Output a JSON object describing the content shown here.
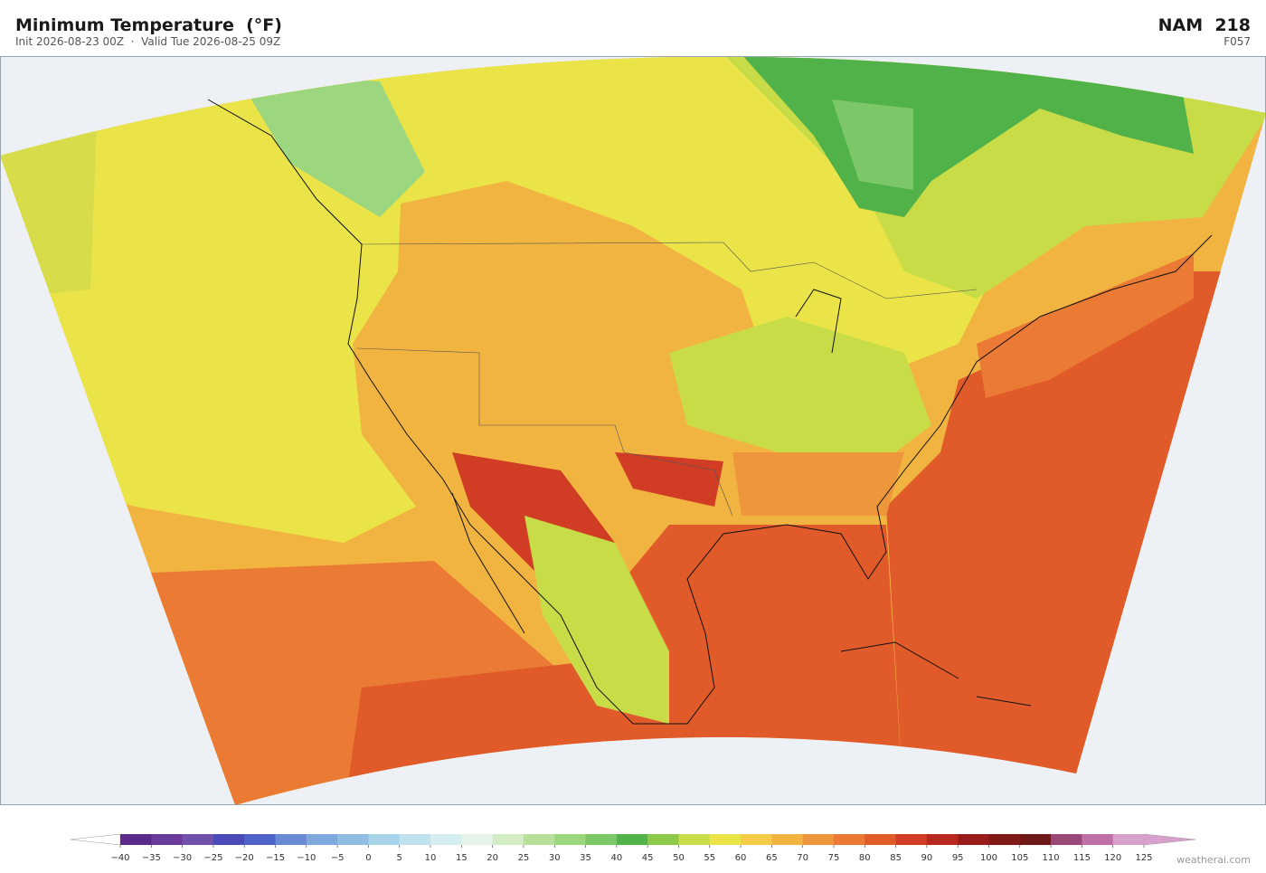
{
  "header": {
    "title": "Minimum Temperature  (°F)",
    "subtitle": "Init 2026-08-23 00Z  ·  Valid Tue 2026-08-25 09Z",
    "model": "NAM  218",
    "forecast_hour": "F057"
  },
  "colorbar": {
    "lim": [
      -40,
      125
    ],
    "ticks": [
      {
        "value": -40,
        "label": "−40"
      },
      {
        "value": -35,
        "label": "−35"
      },
      {
        "value": -30,
        "label": "−30"
      },
      {
        "value": -25,
        "label": "−25"
      },
      {
        "value": -20,
        "label": "−20"
      },
      {
        "value": -15,
        "label": "−15"
      },
      {
        "value": -10,
        "label": "−10"
      },
      {
        "value": -5,
        "label": "−5"
      },
      0,
      5,
      10,
      15,
      20,
      25,
      30,
      35,
      40,
      45,
      50,
      55,
      60,
      65,
      70,
      75,
      80,
      85,
      90,
      95,
      100,
      105,
      110,
      115,
      120,
      125
    ],
    "colors": [
      "#5b2a8c",
      "#6a3a9a",
      "#7350aa",
      "#4a4ab8",
      "#4f62c8",
      "#6a8ad4",
      "#7fa8dc",
      "#92bde2",
      "#a8d4ea",
      "#bfe2ee",
      "#d6eef0",
      "#e6f4ea",
      "#d2ecc4",
      "#b8e09a",
      "#9cd67e",
      "#7cc868",
      "#52b24a",
      "#8cc84a",
      "#c8dc48",
      "#eae448",
      "#f4cc48",
      "#f2b440",
      "#ee963c",
      "#ea7a34",
      "#e05a2a",
      "#d03c24",
      "#b82820",
      "#981c1c",
      "#801818",
      "#701818",
      "#9a4878",
      "#c070a8",
      "#d8a0cc"
    ],
    "under_color": "#ffffff",
    "over_color": "#d8a0cc"
  },
  "watermark": "weatherai.com"
}
